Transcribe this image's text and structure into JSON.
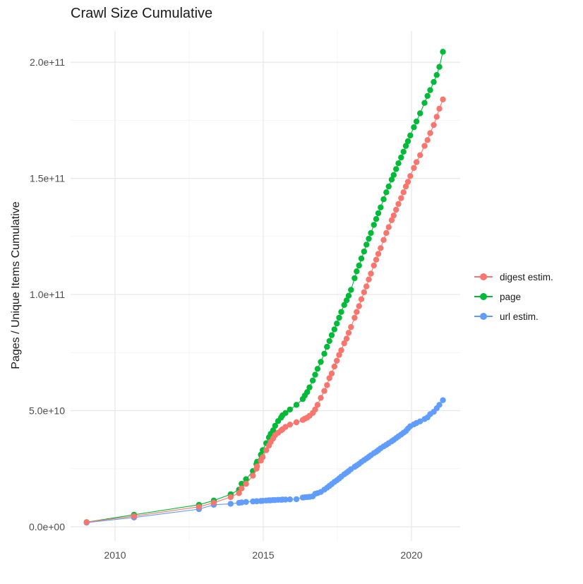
{
  "chart_data": {
    "type": "line",
    "title": "Crawl Size Cumulative",
    "ylabel": "Pages / Unique Items Cumulative",
    "xlabel": "",
    "value_unit": "billions (1e9) of pages / unique items",
    "grid": true,
    "legend_position": "right",
    "x_domain": [
      2008.5,
      2021.643
    ],
    "y_domain_billions": [
      -6.08,
      213.42
    ],
    "x_ticks": [
      {
        "value": 2010,
        "label": "2010"
      },
      {
        "value": 2015,
        "label": "2015"
      },
      {
        "value": 2020,
        "label": "2020"
      }
    ],
    "x_minor_ticks": [
      2012.5,
      2017.5
    ],
    "y_ticks": [
      {
        "value_billions": 0,
        "label": "0.0e+00"
      },
      {
        "value_billions": 50,
        "label": "5.0e+10"
      },
      {
        "value_billions": 100,
        "label": "1.0e+11"
      },
      {
        "value_billions": 150,
        "label": "1.5e+11"
      },
      {
        "value_billions": 200,
        "label": "2.0e+11"
      }
    ],
    "y_minor_ticks_billions": [
      25,
      75,
      125,
      175
    ],
    "colors": {
      "major_grid": "#e7e7e7",
      "minor_grid": "#f4f4f4",
      "tick_text": "#4d4d4d",
      "title_text": "#1a1a1a"
    },
    "draw_order": [
      1,
      2,
      0
    ],
    "x_years": [
      2009.04,
      2010.64,
      2012.83,
      2013.33,
      2013.9,
      2014.18,
      2014.27,
      2014.42,
      2014.65,
      2014.77,
      2014.79,
      2014.92,
      2014.98,
      2015.1,
      2015.19,
      2015.25,
      2015.33,
      2015.4,
      2015.5,
      2015.6,
      2015.65,
      2015.75,
      2015.9,
      2016.12,
      2016.33,
      2016.4,
      2016.48,
      2016.56,
      2016.67,
      2016.75,
      2016.83,
      2016.94,
      2017.06,
      2017.15,
      2017.23,
      2017.31,
      2017.4,
      2017.48,
      2017.56,
      2017.63,
      2017.73,
      2017.81,
      2017.88,
      2017.96,
      2018.08,
      2018.15,
      2018.23,
      2018.31,
      2018.4,
      2018.48,
      2018.56,
      2018.63,
      2018.73,
      2018.81,
      2018.88,
      2018.96,
      2019.06,
      2019.15,
      2019.23,
      2019.33,
      2019.4,
      2019.48,
      2019.56,
      2019.65,
      2019.73,
      2019.81,
      2019.88,
      2019.96,
      2020.08,
      2020.17,
      2020.29,
      2020.44,
      2020.54,
      2020.63,
      2020.75,
      2020.85,
      2020.94,
      2021.06
    ],
    "series": [
      {
        "name": "digest estim.",
        "color": "#F8766D",
        "values_billions": [
          2.0,
          4.6,
          8.6,
          10.4,
          12.8,
          14.5,
          16.5,
          18.5,
          22.0,
          25.0,
          26.0,
          28.5,
          30.0,
          33.0,
          35.0,
          36.5,
          38.0,
          39.5,
          40.5,
          41.5,
          42.0,
          43.0,
          44.0,
          45.0,
          46.0,
          46.5,
          47.0,
          47.8,
          49.0,
          50.5,
          52.5,
          55.5,
          58.5,
          61.0,
          64.0,
          66.0,
          69.0,
          71.5,
          74.0,
          76.0,
          79.0,
          81.0,
          83.5,
          86.0,
          90.0,
          92.5,
          95.0,
          98.0,
          101.0,
          103.5,
          106.5,
          109.0,
          112.5,
          115.0,
          117.5,
          120.0,
          123.5,
          126.5,
          129.0,
          132.0,
          134.0,
          136.5,
          139.0,
          141.5,
          144.0,
          146.5,
          148.5,
          151.0,
          154.5,
          157.0,
          160.0,
          164.0,
          166.5,
          169.5,
          173.0,
          176.5,
          180.0,
          184.0
        ]
      },
      {
        "name": "page",
        "color": "#00BA38",
        "values_billions": [
          2.0,
          5.2,
          9.5,
          11.3,
          14.0,
          16.0,
          18.5,
          20.5,
          24.0,
          27.0,
          28.0,
          31.0,
          33.0,
          36.0,
          38.5,
          40.0,
          41.5,
          43.5,
          45.5,
          47.0,
          48.0,
          49.0,
          50.5,
          52.5,
          55.0,
          56.5,
          58.0,
          60.0,
          63.0,
          65.5,
          68.0,
          71.0,
          74.5,
          77.5,
          80.0,
          82.5,
          85.0,
          87.5,
          90.0,
          92.5,
          95.5,
          97.5,
          99.5,
          102.0,
          107.0,
          110.0,
          112.5,
          115.5,
          118.5,
          121.5,
          124.0,
          126.5,
          130.0,
          132.5,
          135.0,
          137.5,
          141.0,
          144.0,
          146.5,
          149.5,
          151.5,
          154.0,
          156.5,
          159.0,
          161.5,
          164.0,
          166.0,
          168.5,
          172.0,
          174.5,
          178.0,
          182.5,
          185.5,
          188.0,
          191.5,
          194.5,
          198.0,
          204.5
        ]
      },
      {
        "name": "url estim.",
        "color": "#619CFF",
        "values_billions": [
          1.8,
          4.0,
          7.6,
          9.5,
          9.9,
          10.3,
          10.5,
          10.7,
          10.9,
          11.0,
          11.0,
          11.1,
          11.2,
          11.3,
          11.4,
          11.4,
          11.5,
          11.5,
          11.6,
          11.6,
          11.7,
          11.7,
          11.8,
          11.9,
          12.6,
          12.7,
          12.8,
          12.9,
          13.1,
          14.2,
          14.5,
          15.0,
          16.0,
          16.8,
          17.6,
          18.4,
          19.3,
          20.0,
          20.8,
          21.6,
          22.6,
          23.3,
          24.0,
          24.8,
          25.8,
          26.4,
          27.1,
          27.9,
          28.7,
          29.4,
          30.1,
          30.8,
          31.7,
          32.3,
          33.0,
          33.8,
          34.6,
          35.3,
          36.0,
          36.8,
          37.4,
          38.2,
          38.9,
          39.7,
          40.5,
          41.2,
          42.3,
          43.3,
          44.1,
          44.7,
          45.4,
          46.4,
          47.1,
          48.5,
          49.5,
          51.0,
          52.5,
          54.5
        ]
      }
    ]
  }
}
